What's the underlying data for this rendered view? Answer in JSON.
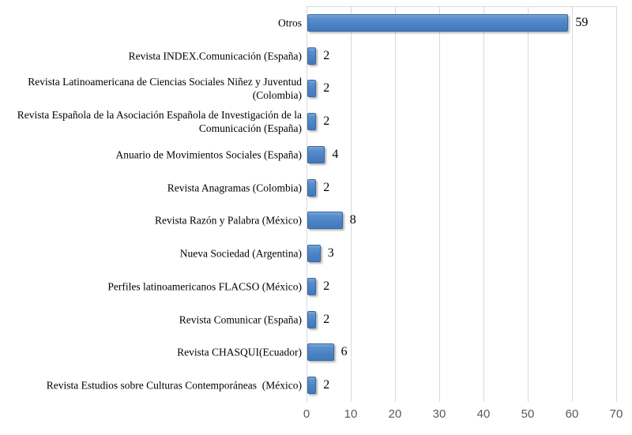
{
  "chart_data": {
    "type": "bar",
    "orientation": "horizontal",
    "title": "",
    "xlabel": "",
    "ylabel": "",
    "categories": [
      "Otros",
      "Revista INDEX.Comunicación (España)",
      "Revista Latinoamericana de Ciencias Sociales Niñez y Juventud (Colombia)",
      "Revista Española de la Asociación Española de Investigación de la Comunicación (España)",
      "Anuario de Movimientos Sociales (España)",
      "Revista Anagramas (Colombia)",
      "Revista Razón y Palabra (México)",
      "Nueva Sociedad (Argentina)",
      "Perfiles latinoamericanos FLACSO (México)",
      "Revista Comunicar (España)",
      "Revista CHASQUI(Ecuador)",
      "Revista Estudios sobre Culturas Contemporáneas  (México)"
    ],
    "values": [
      59,
      2,
      2,
      2,
      4,
      2,
      8,
      3,
      2,
      2,
      6,
      2
    ],
    "xlim": [
      0,
      70
    ],
    "xticks": [
      0,
      10,
      20,
      30,
      40,
      50,
      60,
      70
    ],
    "grid": "vertical",
    "legend": "none",
    "colors": {
      "bar_fill": "#4e86c8",
      "bar_border": "#39679f",
      "gridline": "#d9d9d9",
      "tick_label": "#595959",
      "text": "#000000",
      "background": "#ffffff"
    }
  }
}
